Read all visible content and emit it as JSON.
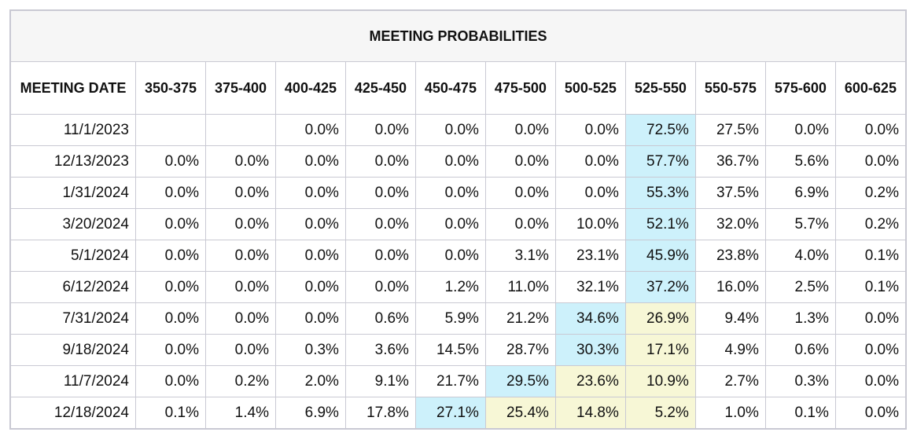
{
  "header": {
    "title": "MEETING PROBABILITIES"
  },
  "highlight_colors": {
    "max": "#cdf1fb",
    "path": "#f7f7d6"
  },
  "table": {
    "columns": [
      "MEETING DATE",
      "350-375",
      "375-400",
      "400-425",
      "425-450",
      "450-475",
      "475-500",
      "500-525",
      "525-550",
      "550-575",
      "575-600",
      "600-625"
    ],
    "rows": [
      [
        "11/1/2023",
        null,
        null,
        "0.0%",
        "0.0%",
        "0.0%",
        "0.0%",
        "0.0%",
        "72.5%",
        "27.5%",
        "0.0%",
        "0.0%"
      ],
      [
        "12/13/2023",
        "0.0%",
        "0.0%",
        "0.0%",
        "0.0%",
        "0.0%",
        "0.0%",
        "0.0%",
        "57.7%",
        "36.7%",
        "5.6%",
        "0.0%"
      ],
      [
        "1/31/2024",
        "0.0%",
        "0.0%",
        "0.0%",
        "0.0%",
        "0.0%",
        "0.0%",
        "0.0%",
        "55.3%",
        "37.5%",
        "6.9%",
        "0.2%"
      ],
      [
        "3/20/2024",
        "0.0%",
        "0.0%",
        "0.0%",
        "0.0%",
        "0.0%",
        "0.0%",
        "10.0%",
        "52.1%",
        "32.0%",
        "5.7%",
        "0.2%"
      ],
      [
        "5/1/2024",
        "0.0%",
        "0.0%",
        "0.0%",
        "0.0%",
        "0.0%",
        "3.1%",
        "23.1%",
        "45.9%",
        "23.8%",
        "4.0%",
        "0.1%"
      ],
      [
        "6/12/2024",
        "0.0%",
        "0.0%",
        "0.0%",
        "0.0%",
        "1.2%",
        "11.0%",
        "32.1%",
        "37.2%",
        "16.0%",
        "2.5%",
        "0.1%"
      ],
      [
        "7/31/2024",
        "0.0%",
        "0.0%",
        "0.0%",
        "0.6%",
        "5.9%",
        "21.2%",
        "34.6%",
        "26.9%",
        "9.4%",
        "1.3%",
        "0.0%"
      ],
      [
        "9/18/2024",
        "0.0%",
        "0.0%",
        "0.3%",
        "3.6%",
        "14.5%",
        "28.7%",
        "30.3%",
        "17.1%",
        "4.9%",
        "0.6%",
        "0.0%"
      ],
      [
        "11/7/2024",
        "0.0%",
        "0.2%",
        "2.0%",
        "9.1%",
        "21.7%",
        "29.5%",
        "23.6%",
        "10.9%",
        "2.7%",
        "0.3%",
        "0.0%"
      ],
      [
        "12/18/2024",
        "0.1%",
        "1.4%",
        "6.9%",
        "17.8%",
        "27.1%",
        "25.4%",
        "14.8%",
        "5.2%",
        "1.0%",
        "0.1%",
        "0.0%"
      ]
    ]
  }
}
